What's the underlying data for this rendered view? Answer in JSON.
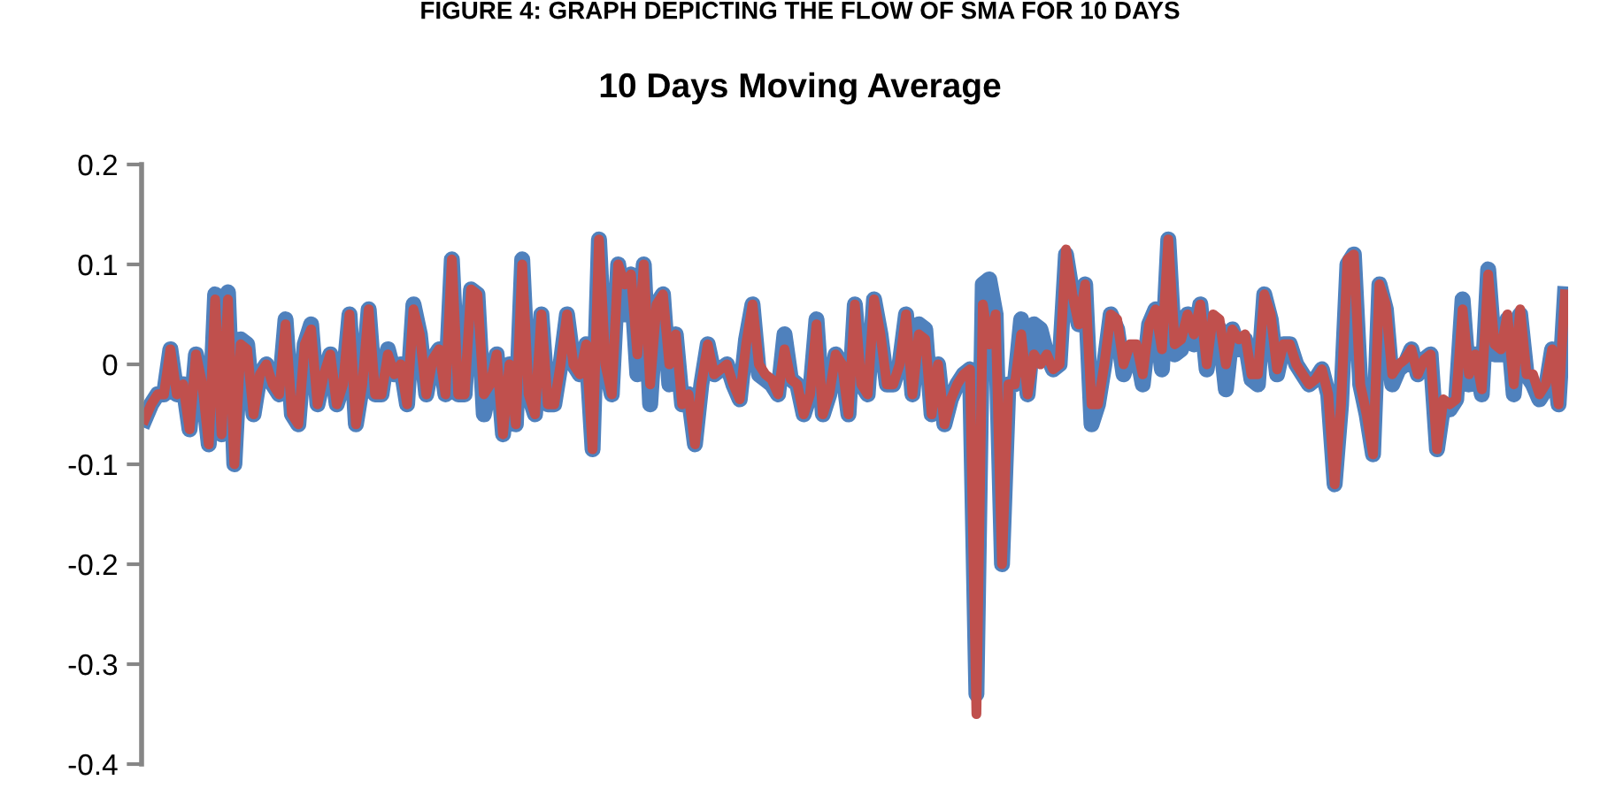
{
  "chart_data": {
    "type": "line",
    "title": "10 Days Moving Average",
    "annotations": [
      "FIGURE 4: GRAPH DEPICTING THE FLOW OF SMA FOR 10 DAYS"
    ],
    "categories": [
      null,
      null,
      null,
      null,
      null,
      null,
      null,
      null,
      null,
      null,
      null,
      null,
      null,
      null,
      null,
      null,
      null,
      null,
      null,
      null,
      null,
      null,
      null,
      null,
      null,
      null,
      null,
      null,
      null,
      null,
      null,
      null,
      null,
      null,
      null,
      null,
      null,
      null,
      null,
      null,
      null,
      null,
      null,
      null,
      null,
      null,
      null,
      null,
      null,
      null,
      null,
      null,
      null,
      null,
      null,
      null,
      null,
      null,
      null,
      null,
      null,
      null,
      null,
      null,
      null,
      null,
      null,
      null,
      null,
      null,
      null,
      null,
      null,
      null,
      null,
      null,
      null,
      null,
      null,
      null,
      null,
      null,
      null,
      null,
      null,
      null,
      null,
      null,
      null,
      null,
      null,
      null,
      null,
      null,
      null,
      null,
      null,
      null,
      null,
      null,
      null,
      null,
      null,
      null,
      null,
      null,
      null,
      null,
      null,
      null,
      null,
      null,
      null,
      null,
      null,
      null,
      null,
      null,
      null,
      null,
      null,
      null,
      null,
      null,
      null,
      null,
      null,
      null,
      null,
      null,
      null,
      null,
      null,
      null,
      null,
      null,
      null,
      null,
      null,
      null,
      null,
      null,
      null,
      null,
      null,
      null,
      null,
      null,
      null,
      null,
      null,
      null,
      null,
      null,
      null,
      null,
      null,
      null,
      null,
      null,
      null,
      null,
      null,
      null,
      null,
      null,
      null,
      null,
      null,
      null,
      null,
      null,
      null,
      null,
      null,
      null,
      null,
      null,
      null,
      null,
      null,
      null,
      null,
      null,
      null,
      null,
      null,
      null,
      null,
      null,
      null,
      null,
      null,
      null,
      null,
      null,
      null,
      null,
      null,
      null,
      null,
      null,
      null,
      null,
      null,
      null,
      null,
      null,
      null,
      null,
      null,
      null,
      null,
      null,
      null,
      null,
      null,
      null,
      null,
      null,
      null,
      null,
      null
    ],
    "series": [
      {
        "color": "#4f81bd",
        "values": [
          -0.055,
          -0.04,
          -0.03,
          -0.03,
          0.015,
          -0.03,
          -0.02,
          -0.065,
          0.01,
          -0.02,
          -0.08,
          0.07,
          -0.07,
          0.072,
          -0.1,
          0.025,
          0.02,
          -0.05,
          -0.01,
          0.0,
          -0.02,
          -0.03,
          0.045,
          -0.05,
          -0.06,
          0.02,
          0.04,
          -0.04,
          -0.01,
          0.01,
          -0.04,
          -0.02,
          0.05,
          -0.06,
          -0.02,
          0.055,
          -0.03,
          -0.03,
          0.015,
          -0.01,
          0.0,
          -0.04,
          0.06,
          0.03,
          -0.03,
          0.005,
          0.015,
          -0.03,
          0.105,
          -0.03,
          -0.03,
          0.075,
          0.07,
          -0.05,
          -0.02,
          0.01,
          -0.07,
          0.0,
          -0.06,
          0.105,
          -0.03,
          -0.05,
          0.05,
          -0.04,
          -0.04,
          0.0,
          0.05,
          0.0,
          -0.01,
          0.02,
          -0.085,
          0.125,
          0.0,
          -0.03,
          0.1,
          0.05,
          0.09,
          -0.01,
          0.1,
          -0.04,
          0.06,
          0.07,
          -0.02,
          0.03,
          -0.04,
          -0.03,
          -0.08,
          -0.02,
          0.02,
          -0.01,
          -0.005,
          0.0,
          -0.02,
          -0.035,
          0.025,
          0.06,
          -0.01,
          -0.015,
          -0.02,
          -0.03,
          0.03,
          -0.015,
          -0.02,
          -0.05,
          -0.03,
          0.045,
          -0.05,
          -0.03,
          0.01,
          0.0,
          -0.05,
          0.06,
          -0.02,
          -0.03,
          0.065,
          0.03,
          -0.02,
          -0.02,
          0.0,
          0.05,
          -0.03,
          0.04,
          0.035,
          -0.05,
          0.0,
          -0.06,
          -0.035,
          -0.02,
          -0.01,
          -0.005,
          -0.33,
          0.08,
          0.085,
          0.05,
          -0.2,
          -0.02,
          -0.02,
          0.045,
          -0.03,
          0.04,
          0.035,
          0.01,
          -0.005,
          0.0,
          0.11,
          0.07,
          0.04,
          0.08,
          -0.06,
          -0.04,
          0.0,
          0.05,
          0.035,
          -0.01,
          0.01,
          0.015,
          -0.02,
          0.04,
          0.055,
          -0.005,
          0.125,
          0.01,
          0.015,
          0.05,
          0.02,
          0.06,
          -0.005,
          0.045,
          0.035,
          -0.025,
          0.035,
          0.015,
          0.025,
          -0.015,
          -0.02,
          0.07,
          0.045,
          -0.01,
          0.02,
          0.02,
          0.0,
          -0.01,
          -0.02,
          -0.015,
          -0.005,
          -0.03,
          -0.12,
          -0.04,
          0.1,
          0.11,
          -0.02,
          -0.05,
          -0.09,
          0.08,
          0.055,
          -0.02,
          -0.005,
          0.0,
          0.015,
          -0.01,
          0.005,
          0.01,
          -0.085,
          -0.04,
          -0.045,
          -0.035,
          0.065,
          -0.02,
          0.01,
          -0.03,
          0.095,
          0.01,
          0.01,
          0.045,
          -0.03,
          0.05,
          -0.01,
          -0.02,
          -0.035,
          -0.025,
          0.015,
          -0.04,
          0.07
        ]
      },
      {
        "color": "#c0504d",
        "values": [
          -0.055,
          -0.04,
          -0.03,
          -0.03,
          0.015,
          -0.03,
          -0.02,
          -0.065,
          0.01,
          -0.02,
          -0.08,
          0.065,
          -0.07,
          0.065,
          -0.1,
          0.02,
          0.015,
          -0.05,
          -0.01,
          0.0,
          -0.02,
          -0.03,
          0.04,
          -0.05,
          -0.06,
          0.02,
          0.035,
          -0.04,
          -0.01,
          0.01,
          -0.04,
          -0.02,
          0.05,
          -0.06,
          -0.02,
          0.055,
          -0.03,
          -0.03,
          0.01,
          -0.01,
          0.0,
          -0.04,
          0.055,
          0.03,
          -0.03,
          0.005,
          0.015,
          -0.03,
          0.105,
          -0.03,
          -0.03,
          0.075,
          0.07,
          -0.03,
          -0.02,
          0.01,
          -0.07,
          0.0,
          -0.06,
          0.1,
          -0.03,
          -0.05,
          0.05,
          -0.04,
          -0.04,
          0.0,
          0.05,
          0.0,
          -0.01,
          0.02,
          -0.085,
          0.125,
          0.0,
          -0.03,
          0.1,
          0.08,
          0.09,
          0.01,
          0.1,
          -0.02,
          0.06,
          0.07,
          0.0,
          0.03,
          -0.04,
          -0.03,
          -0.08,
          -0.02,
          0.02,
          -0.01,
          -0.005,
          0.0,
          -0.02,
          -0.035,
          0.02,
          0.06,
          0.0,
          -0.01,
          -0.015,
          -0.03,
          0.015,
          -0.015,
          -0.02,
          -0.05,
          -0.03,
          0.04,
          -0.05,
          -0.03,
          0.01,
          0.0,
          -0.05,
          0.06,
          -0.02,
          -0.03,
          0.065,
          0.03,
          -0.02,
          -0.02,
          0.0,
          0.05,
          -0.03,
          0.03,
          0.025,
          -0.05,
          0.0,
          -0.06,
          -0.035,
          -0.02,
          -0.01,
          -0.005,
          -0.35,
          0.06,
          0.02,
          0.05,
          -0.2,
          -0.02,
          -0.02,
          0.03,
          -0.03,
          0.01,
          0.0,
          0.01,
          -0.005,
          0.0,
          0.115,
          0.07,
          0.04,
          0.08,
          -0.04,
          -0.04,
          0.0,
          0.05,
          0.045,
          0.0,
          0.02,
          0.02,
          -0.01,
          0.04,
          0.055,
          0.015,
          0.125,
          0.02,
          0.025,
          0.05,
          0.03,
          0.06,
          0.0,
          0.05,
          0.045,
          0.0,
          0.035,
          0.025,
          0.03,
          -0.01,
          -0.01,
          0.07,
          0.05,
          -0.005,
          0.02,
          0.02,
          0.0,
          -0.01,
          -0.02,
          -0.015,
          -0.005,
          -0.03,
          -0.12,
          -0.04,
          0.105,
          0.11,
          -0.02,
          -0.05,
          -0.09,
          0.08,
          0.06,
          -0.01,
          0.0,
          0.005,
          0.015,
          -0.01,
          0.005,
          0.01,
          -0.085,
          -0.035,
          -0.04,
          -0.035,
          0.055,
          -0.01,
          0.01,
          -0.025,
          0.09,
          0.02,
          0.015,
          0.05,
          -0.02,
          0.055,
          -0.01,
          -0.01,
          -0.03,
          -0.02,
          0.015,
          -0.04,
          0.07
        ]
      }
    ],
    "ylim": [
      -0.4,
      0.2
    ],
    "yticks": [
      -0.4,
      -0.3,
      -0.2,
      -0.1,
      0,
      0.1,
      0.2
    ],
    "tick_labels": "y",
    "grid": false,
    "legend": false,
    "marker": "none",
    "line_style": "solid"
  }
}
